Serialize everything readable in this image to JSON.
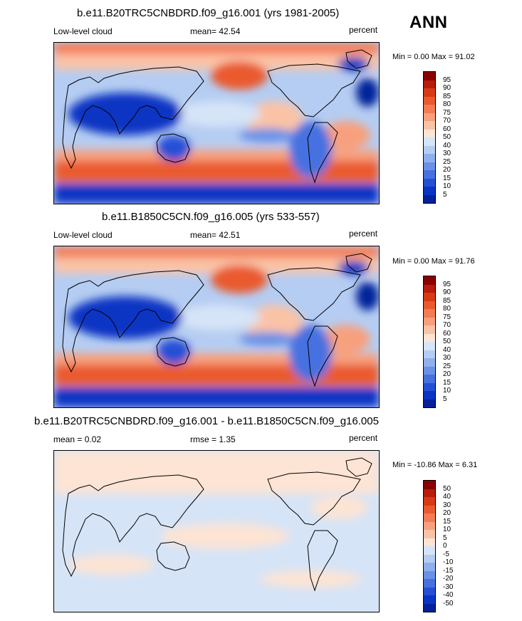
{
  "header": {
    "season": "ANN"
  },
  "panels": [
    {
      "title": "b.e11.B20TRC5CNBDRD.f09_g16.001 (yrs 1981-2005)",
      "left_label": "Low-level cloud",
      "center_label": "mean=  42.54",
      "right_label": "percent",
      "minmax": "Min =   0.00 Max =  91.02",
      "map_name": "model-map"
    },
    {
      "title": "b.e11.B1850C5CN.f09_g16.005 (yrs 533-557)",
      "left_label": "Low-level cloud",
      "center_label": "mean=  42.51",
      "right_label": "percent",
      "minmax": "Min =   0.00 Max =  91.76",
      "map_name": "control-map"
    },
    {
      "title": "b.e11.B20TRC5CNBDRD.f09_g16.001 - b.e11.B1850C5CN.f09_g16.005",
      "left_label": "mean =   0.02",
      "center_label": "rmse =   1.35",
      "right_label": "percent",
      "minmax": "Min = -10.86 Max =   6.31",
      "map_name": "difference-map"
    }
  ],
  "colorbars": {
    "absolute": {
      "labels": [
        "95",
        "90",
        "85",
        "80",
        "75",
        "70",
        "60",
        "50",
        "40",
        "30",
        "25",
        "20",
        "15",
        "10",
        "5"
      ],
      "colors": [
        "#8b0000",
        "#b71c0c",
        "#d83a16",
        "#ea5a2e",
        "#f47b52",
        "#f8a07e",
        "#fbc3a6",
        "#fde4d4",
        "#d6e4f7",
        "#b5cdf2",
        "#8fb0ec",
        "#6a91e6",
        "#4771e0",
        "#2550d6",
        "#0a35c4",
        "#06209a"
      ]
    },
    "difference": {
      "labels": [
        "50",
        "40",
        "30",
        "20",
        "15",
        "10",
        "5",
        "0",
        "-5",
        "-10",
        "-15",
        "-20",
        "-30",
        "-40",
        "-50"
      ],
      "colors": [
        "#8b0000",
        "#b71c0c",
        "#d83a16",
        "#ea5a2e",
        "#f47b52",
        "#f8a07e",
        "#fbc3a6",
        "#fde4d4",
        "#d6e4f7",
        "#b5cdf2",
        "#8fb0ec",
        "#6a91e6",
        "#4771e0",
        "#2550d6",
        "#0a35c4",
        "#06209a"
      ]
    }
  }
}
